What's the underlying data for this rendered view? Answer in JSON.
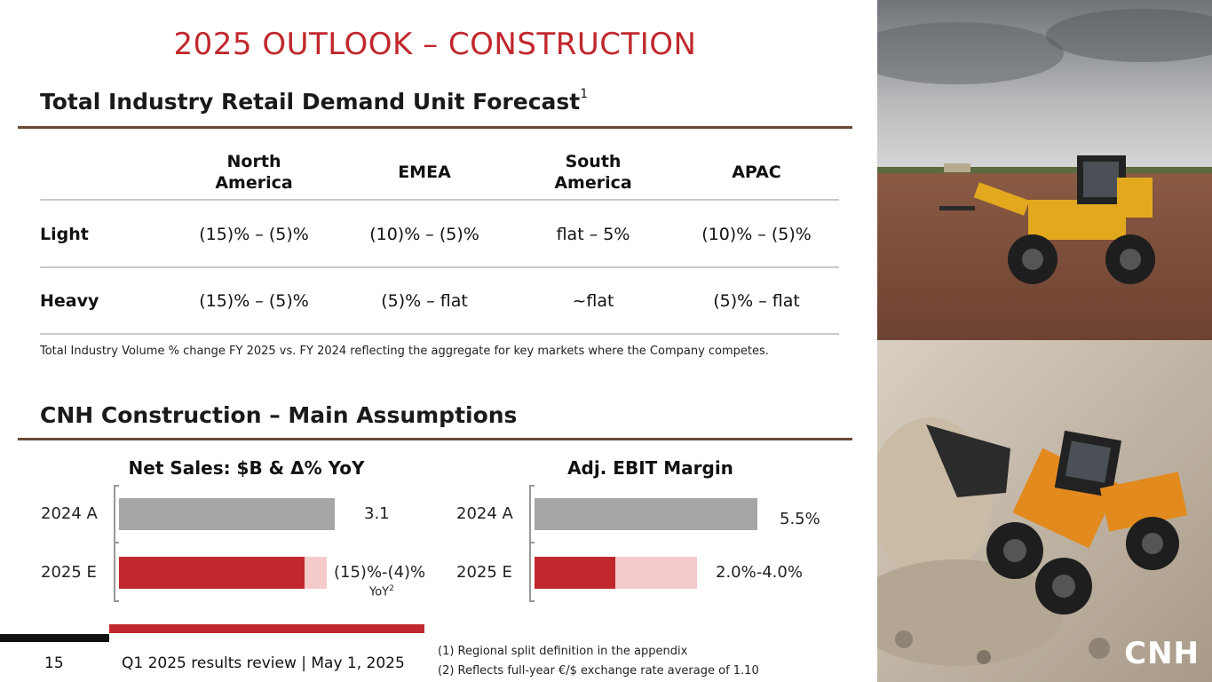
{
  "title": "2025 OUTLOOK – CONSTRUCTION",
  "forecast": {
    "heading": "Total Industry Retail Demand Unit Forecast",
    "heading_sup": "1",
    "columns": [
      "North\nAmerica",
      "EMEA",
      "South\nAmerica",
      "APAC"
    ],
    "rows": [
      {
        "label": "Light",
        "values": [
          "(15)% – (5)%",
          "(10)% – (5)%",
          "flat – 5%",
          "(10)% – (5)%"
        ]
      },
      {
        "label": "Heavy",
        "values": [
          "(15)% – (5)%",
          "(5)% – flat",
          "~flat",
          "(5)% – flat"
        ]
      }
    ],
    "note": "Total Industry Volume % change FY 2025 vs. FY 2024 reflecting the aggregate for key markets where the Company competes."
  },
  "assumptions": {
    "heading": "CNH Construction – Main Assumptions"
  },
  "chart_data": [
    {
      "type": "bar",
      "title": "Net Sales: $B & Δ% YoY",
      "categories": [
        "2024 A",
        "2025 E"
      ],
      "series": [
        {
          "name": "2024 A",
          "values": [
            3.1,
            null
          ]
        },
        {
          "name": "2025 E low",
          "values": [
            null,
            2.66
          ]
        },
        {
          "name": "2025 E high",
          "values": [
            null,
            2.98
          ]
        }
      ],
      "labels": [
        "3.1",
        "(15)%-(4)%"
      ],
      "sublabel": "YoY",
      "sublabel_sup": "2",
      "xlim": [
        0,
        3.1
      ],
      "colors": {
        "actual": "#a6a6a6",
        "low": "#c0282d",
        "range": "#f5caca"
      }
    },
    {
      "type": "bar",
      "title": "Adj. EBIT Margin",
      "categories": [
        "2024 A",
        "2025 E"
      ],
      "series": [
        {
          "name": "2024 A",
          "values": [
            5.5,
            null
          ]
        },
        {
          "name": "2025 E low",
          "values": [
            null,
            2.0
          ]
        },
        {
          "name": "2025 E high",
          "values": [
            null,
            4.0
          ]
        }
      ],
      "labels": [
        "5.5%",
        "2.0%-4.0%"
      ],
      "xlim": [
        0,
        5.5
      ],
      "colors": {
        "actual": "#a6a6a6",
        "low": "#c0282d",
        "range": "#f5caca"
      }
    }
  ],
  "footer": {
    "page_number": "15",
    "event": "Q1 2025 results review | May 1, 2025",
    "footnote1": "(1) Regional split definition in the appendix",
    "footnote2": "(2) Reflects full-year €/$ exchange rate average of 1.10",
    "logo_text": "CNH"
  },
  "colors": {
    "accent": "#c0282d",
    "rule": "#6b4a35"
  }
}
